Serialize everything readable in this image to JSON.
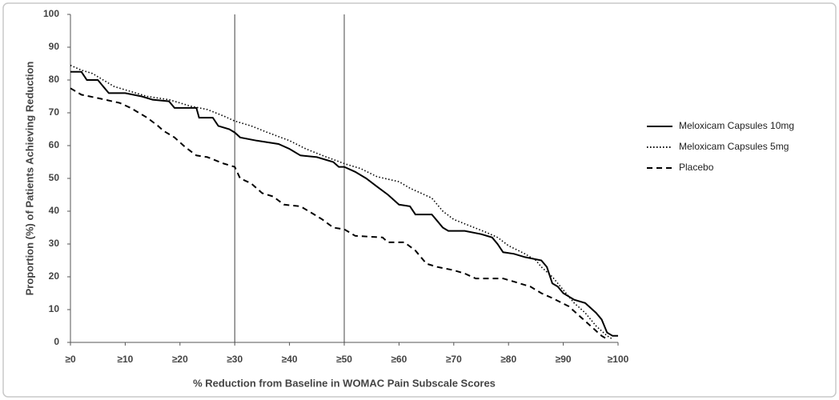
{
  "chart_data": {
    "type": "line",
    "x_label": "% Reduction from Baseline in WOMAC Pain Subscale Scores",
    "y_label": "Proportion (%) of Patients Achieving Reduction",
    "xlim": [
      0,
      100
    ],
    "ylim": [
      0,
      100
    ],
    "xticks": [
      {
        "value": 0,
        "label": "≥0"
      },
      {
        "value": 10,
        "label": "≥10"
      },
      {
        "value": 20,
        "label": "≥20"
      },
      {
        "value": 30,
        "label": "≥30"
      },
      {
        "value": 40,
        "label": "≥40"
      },
      {
        "value": 50,
        "label": "≥50"
      },
      {
        "value": 60,
        "label": "≥60"
      },
      {
        "value": 70,
        "label": "≥70"
      },
      {
        "value": 80,
        "label": "≥80"
      },
      {
        "value": 90,
        "label": "≥90"
      },
      {
        "value": 100,
        "label": "≥100"
      }
    ],
    "yticks": [
      0,
      10,
      20,
      30,
      40,
      50,
      60,
      70,
      80,
      90,
      100
    ],
    "reference_lines": [
      30,
      50
    ],
    "grid": false,
    "legend_position": "right",
    "series": [
      {
        "name": "Meloxicam Capsules 10mg",
        "color": "#000000",
        "dash": "solid",
        "x": [
          0,
          2,
          3,
          5,
          6,
          7,
          10,
          13,
          15,
          18,
          19,
          23,
          23.5,
          26,
          27,
          29,
          30,
          31,
          34,
          36,
          38,
          40,
          42,
          45,
          48,
          49,
          50,
          52,
          54,
          56,
          58,
          60,
          62,
          63,
          66,
          67,
          68,
          69,
          72,
          75,
          77,
          78,
          79,
          81,
          83,
          86,
          87,
          88,
          89,
          90,
          92,
          94,
          96,
          97,
          98,
          99,
          100
        ],
        "values": [
          82.5,
          82.5,
          80,
          80,
          78,
          76,
          76,
          75,
          74,
          73.5,
          71.5,
          71.5,
          68.5,
          68.5,
          66,
          65,
          64,
          62.5,
          61.5,
          61,
          60.5,
          59,
          57,
          56.5,
          55,
          53.5,
          53.5,
          52,
          50,
          47.5,
          45,
          42,
          41.5,
          39,
          39,
          37,
          35,
          34,
          34,
          33,
          32,
          30,
          27.5,
          27,
          26,
          25,
          23,
          18,
          17,
          15,
          13,
          12,
          9,
          7,
          3,
          2,
          2
        ]
      },
      {
        "name": "Meloxicam Capsules 5mg",
        "color": "#000000",
        "dash": "dotted",
        "x": [
          0,
          2,
          4,
          6,
          8,
          10,
          14,
          18,
          22,
          25,
          28,
          30,
          33,
          36,
          40,
          43,
          46,
          50,
          53,
          56,
          60,
          62,
          64,
          66,
          68,
          70,
          73,
          76,
          78,
          80,
          83,
          85,
          86,
          88,
          90,
          92,
          94,
          96,
          98,
          99
        ],
        "values": [
          84.5,
          83,
          82,
          80,
          78,
          77,
          75,
          74,
          72,
          71,
          69,
          67.5,
          66,
          64,
          61.5,
          59,
          57,
          54.5,
          53,
          50.5,
          49,
          47,
          45.5,
          44,
          40,
          37.5,
          35.5,
          33.5,
          32,
          29.5,
          27,
          25,
          23,
          20,
          16,
          12,
          9,
          5,
          2,
          1
        ]
      },
      {
        "name": "Placebo",
        "color": "#000000",
        "dash": "dashed",
        "x": [
          0,
          2,
          5,
          9,
          11,
          14,
          16,
          17,
          19,
          21,
          23,
          25,
          28,
          30,
          31,
          33,
          35,
          37,
          39,
          42,
          44,
          46,
          48,
          50,
          52,
          57,
          58,
          61,
          63,
          65,
          67,
          70,
          72,
          74,
          79,
          81,
          84,
          86,
          88,
          91,
          93,
          95,
          97,
          98
        ],
        "values": [
          77.5,
          75.5,
          74.5,
          73,
          71.5,
          68.5,
          66,
          64.5,
          62.5,
          59.5,
          57,
          56.5,
          54.5,
          53.5,
          50,
          48.5,
          45.5,
          44.5,
          42,
          41.5,
          39.5,
          37.5,
          35,
          34.5,
          32.5,
          32,
          30.5,
          30.5,
          28,
          24,
          23,
          22,
          21,
          19.5,
          19.5,
          18.5,
          17,
          15,
          13.5,
          11,
          8,
          5,
          2,
          1
        ]
      }
    ]
  }
}
